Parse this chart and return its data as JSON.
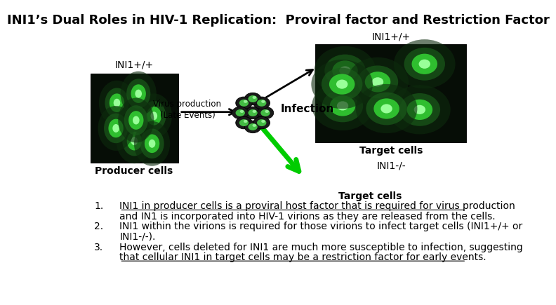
{
  "title": "INI1’s Dual Roles in HIV-1 Replication:  Proviral factor and Restriction Factor",
  "producer_label": "INI1+/+",
  "producer_sublabel": "Producer cells",
  "target_top_label": "INI1+/+",
  "target_cell_label": "Target cells",
  "target_bottom_label": "INI1-/-",
  "virus_prod_label": "Virus production\n(Late Events)",
  "infection_label": "Infection",
  "target_cells_bold": "Target cells",
  "bullet1_underline": "INI1 in producer cells is a proviral host factor that is required for virus production",
  "bullet1_rest": "and IN1 is incorporated into HIV-1 virions as they are released from the cells.",
  "bullet2_line1": "INI1 within the virions is required for those virions to infect target cells (INI1+/+ or",
  "bullet2_line2": "INI1-/-).",
  "bullet3_line1": "However, cells deleted for INI1 are much more susceptible to infection, suggesting",
  "bullet3_underline": "that cellular INI1 in target cells may be a restriction factor for early events.",
  "bg_color": "#ffffff",
  "title_fontsize": 13,
  "label_fontsize": 10,
  "body_fontsize": 10
}
